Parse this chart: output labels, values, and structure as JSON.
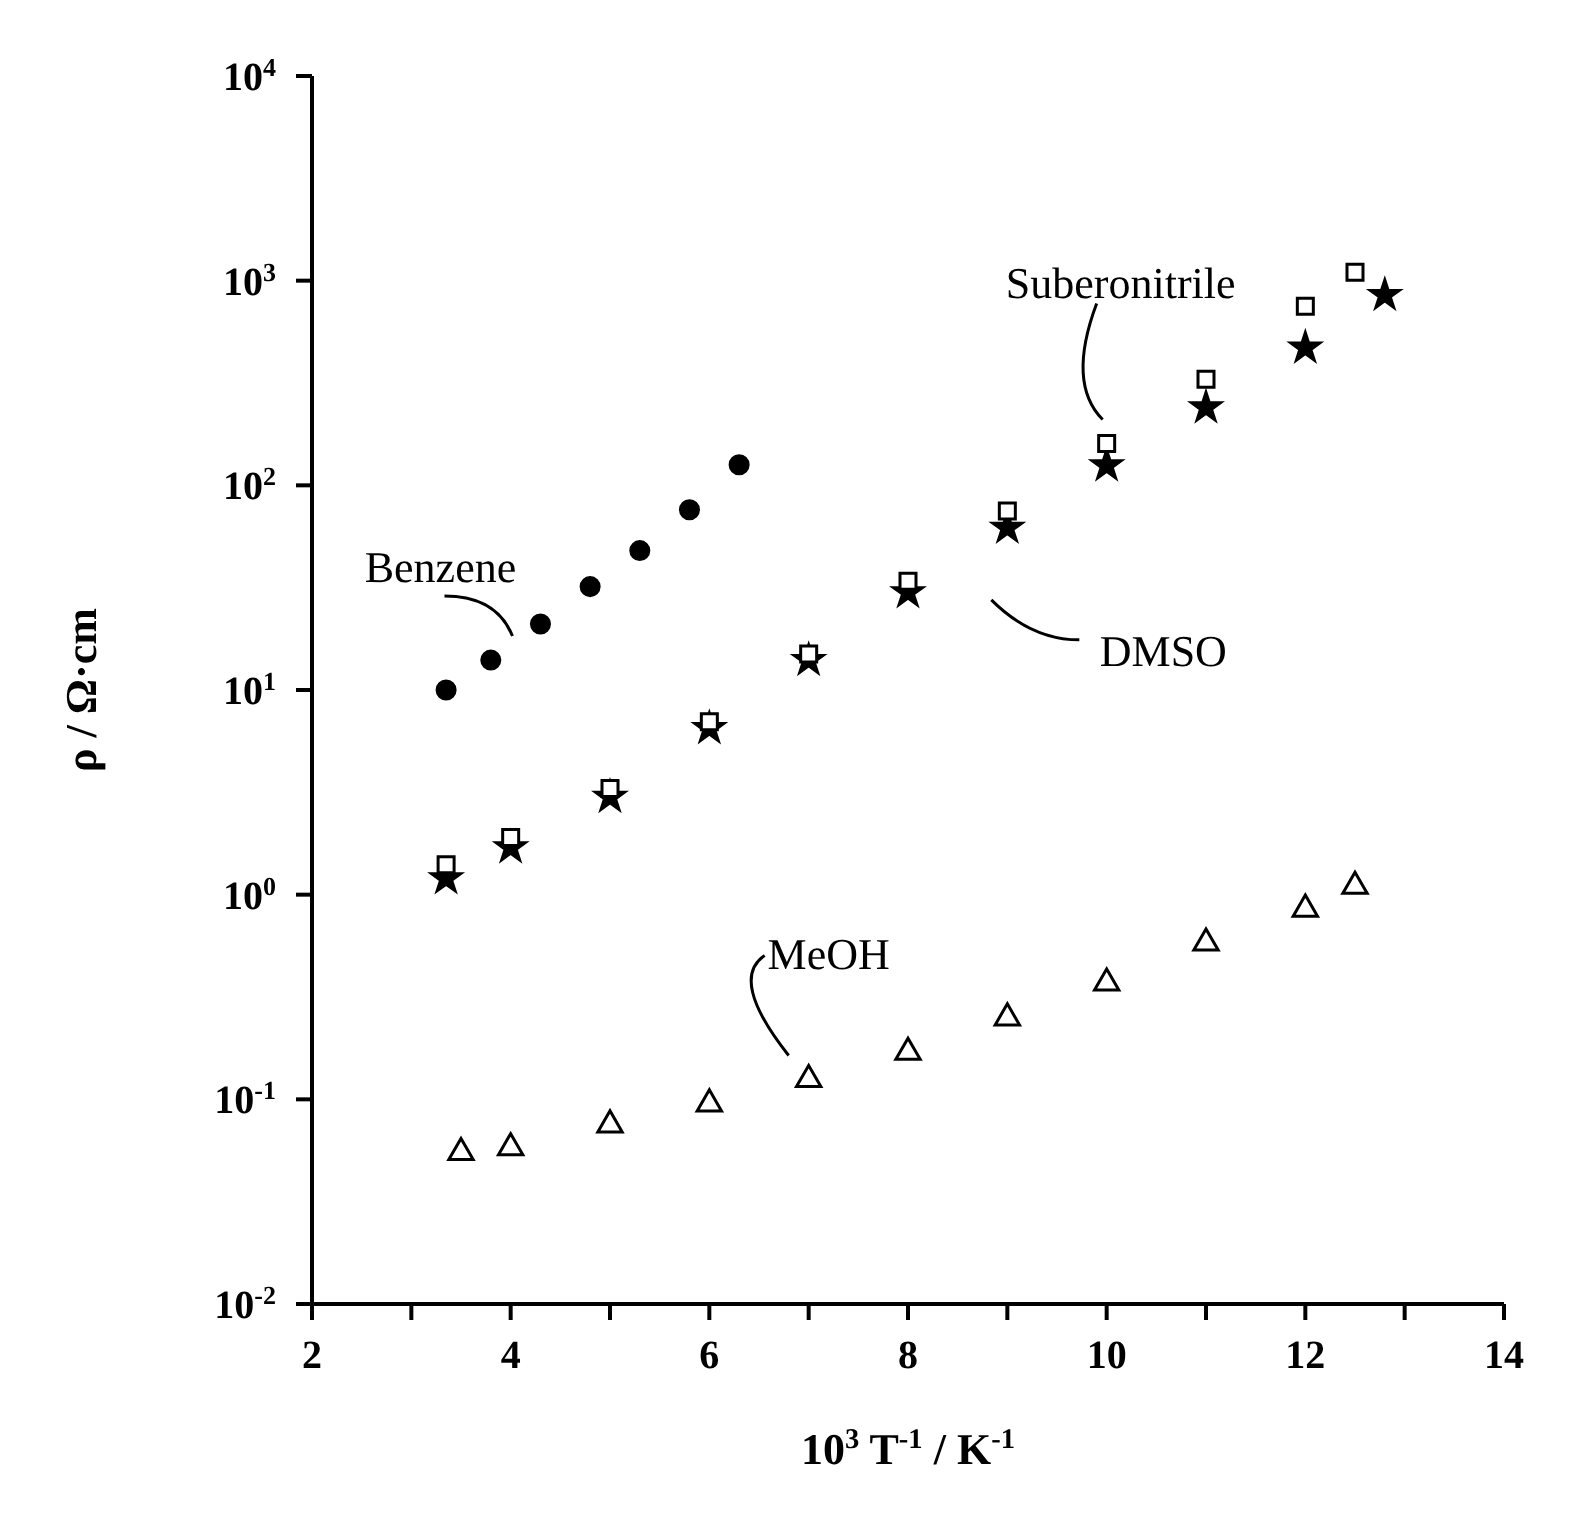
{
  "chart_data": {
    "type": "scatter",
    "xlabel": "10$^{3}$ T$^{-1}$ / K$^{-1}$",
    "ylabel": "ρ / Ω·cm",
    "log": "y",
    "xlim": [
      2,
      14
    ],
    "xticks": [
      2,
      {
        "value": 3,
        "label": null
      },
      4,
      {
        "value": 5,
        "label": null
      },
      6,
      {
        "value": 7,
        "label": null
      },
      8,
      {
        "value": 9,
        "label": null
      },
      10,
      {
        "value": 11,
        "label": null
      },
      12,
      {
        "value": 13,
        "label": null
      },
      14
    ],
    "ylim": [
      0.01,
      10000
    ],
    "yticks": [
      {
        "value": 0.01,
        "label": "10$^{-2}$"
      },
      {
        "value": 0.1,
        "label": "10$^{-1}$"
      },
      {
        "value": 1,
        "label": "10$^{0}$"
      },
      {
        "value": 10,
        "label": "10$^{1}$"
      },
      {
        "value": 100,
        "label": "10$^{2}$"
      },
      {
        "value": 1000,
        "label": "10$^{3}$"
      },
      {
        "value": 10000,
        "label": "10$^{4}$"
      }
    ],
    "series": [
      {
        "name": "Benzene",
        "color": "#000000",
        "marker": "circle",
        "x": [
          3.35,
          3.8,
          4.3,
          4.8,
          5.3,
          5.8,
          6.3
        ],
        "values": [
          10,
          14,
          21,
          32,
          48,
          76,
          126
        ]
      },
      {
        "name": "Suberonitrile",
        "color": "#000000",
        "marker": "square",
        "x": [
          3.35,
          4,
          5,
          6,
          7,
          8,
          9,
          10,
          11,
          12,
          12.5
        ],
        "values": [
          1.4,
          1.9,
          3.3,
          7,
          15,
          34,
          75,
          160,
          330,
          750,
          1100
        ]
      },
      {
        "name": "DMSO",
        "color": "#000000",
        "marker": "star",
        "x": [
          3.35,
          4,
          5,
          6,
          7,
          8,
          9,
          10,
          11,
          12,
          12.8
        ],
        "values": [
          1.2,
          1.7,
          3,
          6.5,
          14,
          30,
          62,
          125,
          240,
          470,
          850
        ]
      },
      {
        "name": "MeOH",
        "color": "#000000",
        "marker": "triangle",
        "x": [
          3.5,
          4,
          5,
          6,
          7,
          8,
          9,
          10,
          11,
          12,
          12.5
        ],
        "values": [
          0.055,
          0.058,
          0.075,
          0.095,
          0.125,
          0.17,
          0.25,
          0.37,
          0.58,
          0.85,
          1.1
        ]
      }
    ]
  }
}
